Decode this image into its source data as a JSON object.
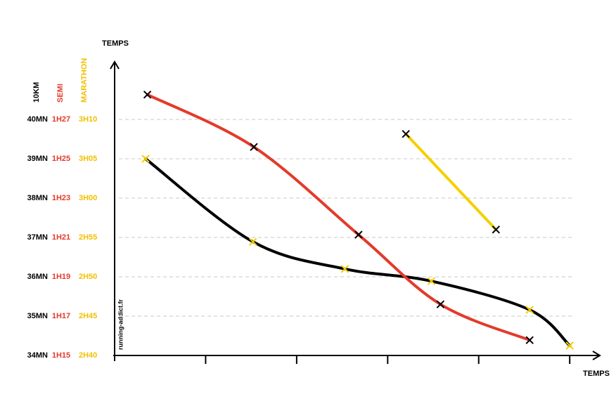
{
  "chart_data": {
    "type": "line",
    "y_title": "TEMPS",
    "x_title": "TEMPS",
    "watermark": "running-addict.fr",
    "xlim": [
      0,
      5.3
    ],
    "xticks": [
      1,
      2,
      3,
      4,
      5
    ],
    "ylim": [
      34,
      41.5
    ],
    "yticks": [
      34,
      35,
      36,
      37,
      38,
      39,
      40
    ],
    "grid": true,
    "series": [
      {
        "name": "10KM",
        "color": "#000000",
        "marker_color": "#f5d000",
        "tick_labels": [
          "34MN",
          "35MN",
          "36MN",
          "37MN",
          "38MN",
          "39MN",
          "40MN"
        ],
        "x": [
          0.34,
          1.52,
          2.53,
          3.48,
          4.56,
          5.0
        ],
        "values": [
          39.0,
          36.89,
          36.2,
          35.89,
          35.16,
          34.25
        ]
      },
      {
        "name": "SEMI",
        "color": "#e43a2a",
        "marker_color": "#000000",
        "tick_labels": [
          "1H15",
          "1H17",
          "1H19",
          "1H21",
          "1H23",
          "1H25",
          "1H27"
        ],
        "x": [
          0.36,
          1.53,
          2.68,
          3.58,
          4.56
        ],
        "values": [
          40.63,
          39.3,
          37.07,
          35.3,
          34.39
        ]
      },
      {
        "name": "MARATHON",
        "color": "#f5d000",
        "marker_color": "#000000",
        "tick_labels": [
          "2H40",
          "2H45",
          "2H50",
          "2H55",
          "3H00",
          "3H05",
          "3H10"
        ],
        "x": [
          3.2,
          4.19
        ],
        "values": [
          39.63,
          37.2
        ]
      }
    ]
  }
}
